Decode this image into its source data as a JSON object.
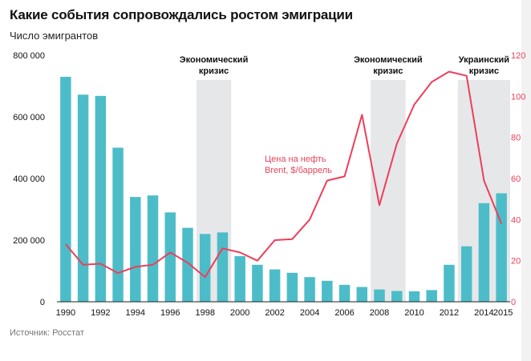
{
  "chart_data": {
    "type": "bar",
    "title": "Какие события сопровождались ростом эмиграции",
    "subtitle": "Число эмигрантов",
    "source": "Источник: Росстат",
    "categories": [
      1990,
      1991,
      1992,
      1993,
      1994,
      1995,
      1996,
      1997,
      1998,
      1999,
      2000,
      2001,
      2002,
      2003,
      2004,
      2005,
      2006,
      2007,
      2008,
      2009,
      2010,
      2011,
      2012,
      2013,
      2014,
      2015
    ],
    "x_tick_labels": [
      "1990",
      "1992",
      "1994",
      "1996",
      "1998",
      "2000",
      "2002",
      "2004",
      "2006",
      "2008",
      "2010",
      "2012",
      "2014",
      "2015"
    ],
    "x_tick_years": [
      1990,
      1992,
      1994,
      1996,
      1998,
      2000,
      2002,
      2004,
      2006,
      2008,
      2010,
      2012,
      2014,
      2015
    ],
    "series": [
      {
        "name": "Число эмигрантов",
        "type": "bar",
        "axis": "left",
        "color": "#4cbdc8",
        "values": [
          730000,
          672000,
          668000,
          500000,
          340000,
          345000,
          290000,
          240000,
          220000,
          225000,
          148000,
          120000,
          105000,
          94000,
          80000,
          68000,
          55000,
          48000,
          40000,
          35000,
          34000,
          38000,
          120000,
          180000,
          320000,
          352000
        ]
      },
      {
        "name": "Цена на нефть Brent, $/баррель",
        "type": "line",
        "axis": "right",
        "color": "#ee3e5a",
        "values": [
          28,
          18,
          18.5,
          14,
          17,
          18,
          24,
          19,
          12,
          26,
          24,
          20,
          30,
          30.5,
          40,
          59,
          61,
          91,
          47,
          77,
          96,
          107,
          112,
          110,
          59,
          38
        ]
      }
    ],
    "y_left": {
      "min": 0,
      "max": 800000,
      "ticks": [
        0,
        200000,
        400000,
        600000,
        800000
      ],
      "tick_labels": [
        "0",
        "200 000",
        "400 000",
        "600 000",
        "800 000"
      ]
    },
    "y_right": {
      "min": 0,
      "max": 120,
      "ticks": [
        0,
        20,
        40,
        60,
        80,
        100,
        120
      ],
      "tick_labels": [
        "0",
        "20",
        "40",
        "60",
        "80",
        "100",
        "120"
      ]
    },
    "shaded_periods": [
      {
        "start": 1997.5,
        "end": 1999.5,
        "label_line1": "Экономический",
        "label_line2": "кризис"
      },
      {
        "start": 2007.5,
        "end": 2009.5,
        "label_line1": "Экономический",
        "label_line2": "кризис"
      },
      {
        "start": 2012.5,
        "end": 2015.5,
        "label_line1": "Украинский",
        "label_line2": "кризис"
      }
    ],
    "line_annotation": {
      "line1": "Цена на нефть",
      "line2": "Brent, $/баррель"
    }
  },
  "colors": {
    "bar": "#4cbdc8",
    "line": "#ee3e5a",
    "shade": "#e6e7e9",
    "right_axis_text": "#e8435a"
  }
}
